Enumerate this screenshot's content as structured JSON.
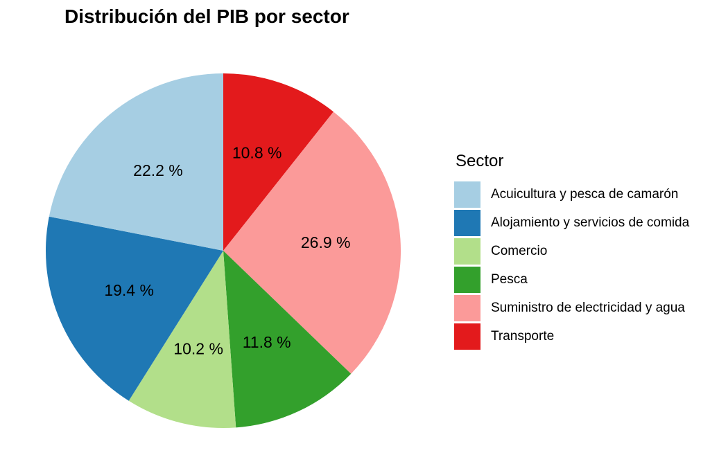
{
  "chart_data": {
    "type": "pie",
    "title": "Distribución del PIB por sector",
    "legend_title": "Sector",
    "legend_position": "right",
    "slices": [
      {
        "name": "Transporte",
        "value": 10.8,
        "label": "10.8 %",
        "color": "#E31A1C"
      },
      {
        "name": "Suministro de electricidad y agua",
        "value": 26.9,
        "label": "26.9 %",
        "color": "#FB9A99"
      },
      {
        "name": "Pesca",
        "value": 11.8,
        "label": "11.8 %",
        "color": "#33A02C"
      },
      {
        "name": "Comercio",
        "value": 10.2,
        "label": "10.2 %",
        "color": "#B2DF8A"
      },
      {
        "name": "Alojamiento y servicios de comida",
        "value": 19.4,
        "label": "19.4 %",
        "color": "#1F78B4"
      },
      {
        "name": "Acuicultura y pesca de camarón",
        "value": 22.2,
        "label": "22.2 %",
        "color": "#A6CEE3"
      }
    ],
    "legend_order": [
      "Acuicultura y pesca de camarón",
      "Alojamiento y servicios de comida",
      "Comercio",
      "Pesca",
      "Suministro de electricidad y agua",
      "Transporte"
    ]
  }
}
